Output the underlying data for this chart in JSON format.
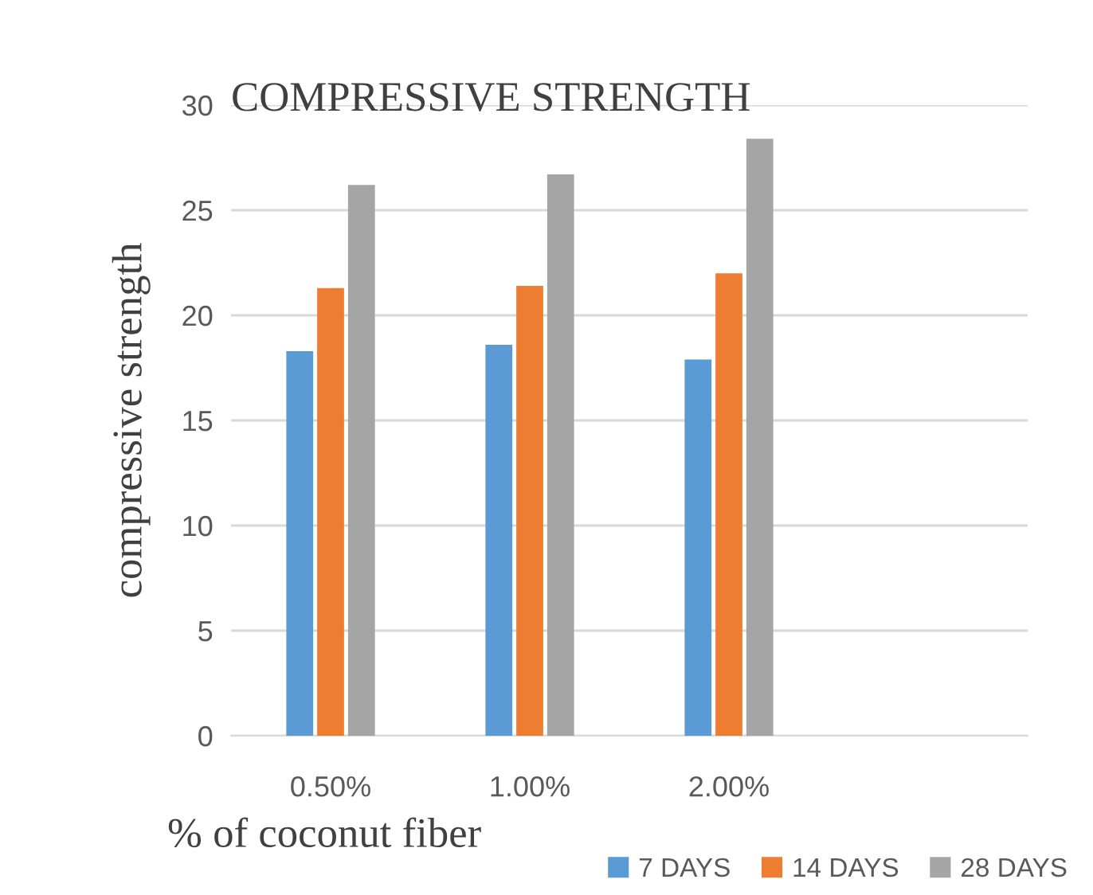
{
  "chart_data": {
    "type": "bar",
    "title": "COMPRESSIVE STRENGTH",
    "xlabel": "% of coconut fiber",
    "ylabel": "compressive strength",
    "categories": [
      "0.50%",
      "1.00%",
      "2.00%",
      null
    ],
    "series": [
      {
        "name": "7 DAYS",
        "color": "#5b9bd5",
        "values": [
          18.3,
          18.6,
          17.9,
          null
        ]
      },
      {
        "name": "14 DAYS",
        "color": "#ed7d31",
        "values": [
          21.3,
          21.4,
          22.0,
          null
        ]
      },
      {
        "name": "28 DAYS",
        "color": "#a5a5a5",
        "values": [
          26.2,
          26.7,
          28.4,
          null
        ]
      }
    ],
    "ylim": [
      0,
      30
    ],
    "yticks": [
      0,
      5,
      10,
      15,
      20,
      25,
      30
    ],
    "grid": "y",
    "legend": "bottom right"
  }
}
